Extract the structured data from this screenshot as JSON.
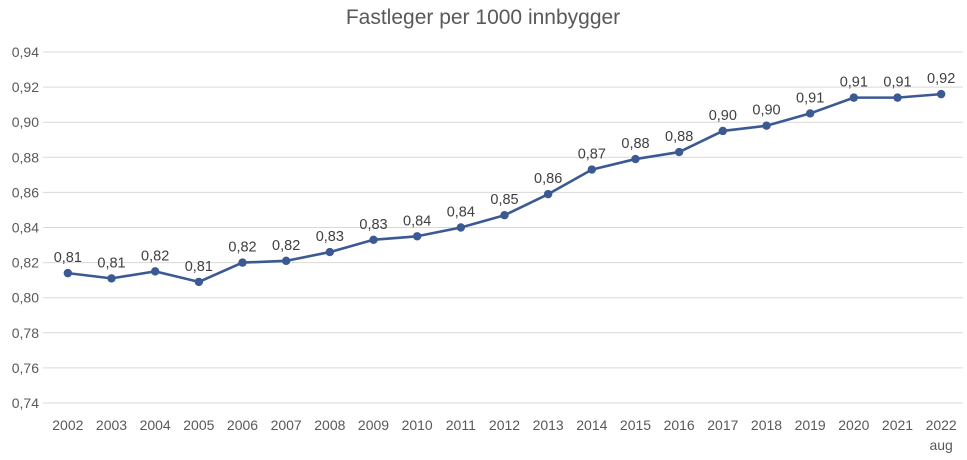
{
  "chart_data": {
    "type": "line",
    "title": "Fastleger per 1000 innbygger",
    "x": [
      "2002",
      "2003",
      "2004",
      "2005",
      "2006",
      "2007",
      "2008",
      "2009",
      "2010",
      "2011",
      "2012",
      "2013",
      "2014",
      "2015",
      "2016",
      "2017",
      "2018",
      "2019",
      "2020",
      "2021",
      "2022"
    ],
    "x_sublabel": "aug",
    "values": [
      0.814,
      0.811,
      0.815,
      0.809,
      0.82,
      0.821,
      0.826,
      0.833,
      0.835,
      0.84,
      0.847,
      0.859,
      0.873,
      0.879,
      0.883,
      0.895,
      0.898,
      0.905,
      0.914,
      0.914,
      0.916
    ],
    "labels": [
      "0,81",
      "0,81",
      "0,82",
      "0,81",
      "0,82",
      "0,82",
      "0,83",
      "0,83",
      "0,84",
      "0,84",
      "0,85",
      "0,86",
      "0,87",
      "0,88",
      "0,88",
      "0,90",
      "0,90",
      "0,91",
      "0,91",
      "0,91",
      "0,92"
    ],
    "ylim": [
      0.74,
      0.94
    ],
    "ytick_step": 0.02,
    "ytick_labels": [
      "0,74",
      "0,76",
      "0,78",
      "0,80",
      "0,82",
      "0,84",
      "0,86",
      "0,88",
      "0,90",
      "0,92",
      "0,94"
    ],
    "grid": true,
    "legend": "none",
    "colors": {
      "line": "#3B5A93",
      "grid": "#D9D9D9",
      "axis_text": "#595959",
      "label_text": "#404040",
      "title_text": "#595959"
    }
  }
}
